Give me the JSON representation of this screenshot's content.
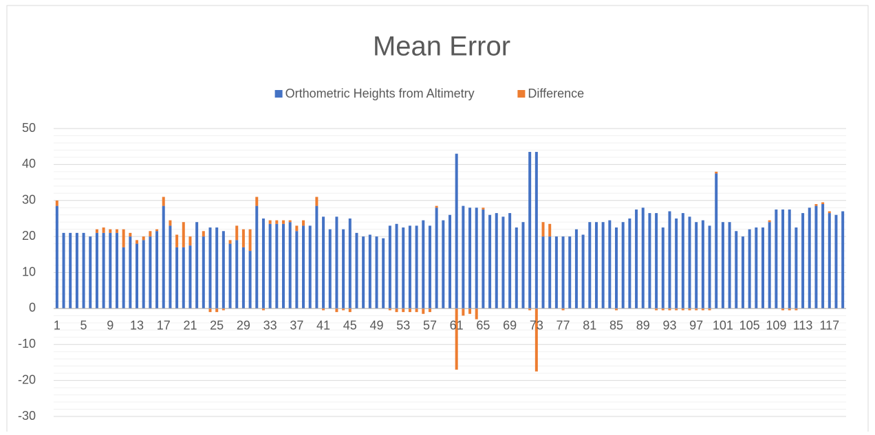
{
  "chart_data": {
    "type": "stacked_bar",
    "title": "Mean Error",
    "categories": [
      "1",
      null,
      null,
      null,
      "5",
      null,
      null,
      null,
      "9",
      null,
      null,
      null,
      "13",
      null,
      null,
      null,
      "17",
      null,
      null,
      null,
      "21",
      null,
      null,
      null,
      "25",
      null,
      null,
      null,
      "29",
      null,
      null,
      null,
      "33",
      null,
      null,
      null,
      "37",
      null,
      null,
      null,
      "41",
      null,
      null,
      null,
      "45",
      null,
      null,
      null,
      "49",
      null,
      null,
      null,
      "53",
      null,
      null,
      null,
      "57",
      null,
      null,
      null,
      "61",
      null,
      null,
      null,
      "65",
      null,
      null,
      null,
      "69",
      null,
      null,
      null,
      "73",
      null,
      null,
      null,
      "77",
      null,
      null,
      null,
      "81",
      null,
      null,
      null,
      "85",
      null,
      null,
      null,
      "89",
      null,
      null,
      null,
      "93",
      null,
      null,
      null,
      "97",
      null,
      null,
      null,
      "101",
      null,
      null,
      null,
      "105",
      null,
      null,
      null,
      "109",
      null,
      null,
      null,
      "113",
      null,
      null,
      null,
      "117",
      null,
      null
    ],
    "series": [
      {
        "name": "Orthometric Heights from Altimetry",
        "color": "#4472c4",
        "values": [
          28.5,
          21,
          21,
          21,
          21,
          20,
          21,
          21,
          21,
          21,
          17,
          20,
          18,
          19,
          20,
          21.5,
          28.5,
          23,
          17,
          17,
          17.5,
          24,
          20,
          22.5,
          22.5,
          21.5,
          18,
          19,
          17,
          16,
          28.5,
          25,
          23.5,
          23.5,
          23.5,
          24,
          21.5,
          23,
          23,
          28.5,
          25.5,
          22,
          25.5,
          22,
          25,
          21,
          20,
          20.5,
          20,
          19.5,
          23,
          23.5,
          22.5,
          23,
          23,
          24.5,
          23,
          28,
          24.5,
          26,
          43,
          28.5,
          28,
          28,
          27.5,
          26,
          26.5,
          25.5,
          26.5,
          22.5,
          24,
          43.5,
          43.5,
          20,
          20,
          20,
          20,
          20,
          22,
          20.5,
          24,
          24,
          24,
          24.5,
          22.5,
          24,
          25,
          27.5,
          28,
          26.5,
          26.5,
          22.5,
          27,
          25,
          26.5,
          25.5,
          24,
          24.5,
          23,
          37.5,
          24,
          24,
          21.5,
          20,
          22,
          22.5,
          22.5,
          24,
          27.5,
          27.5,
          27.5,
          22.5,
          26.5,
          28,
          28.5,
          29,
          26.5,
          26,
          27
        ]
      },
      {
        "name": "Difference",
        "color": "#ed7d31",
        "values": [
          1.5,
          0,
          0,
          0,
          0,
          0,
          1,
          1.5,
          1,
          1,
          5,
          1,
          1,
          1,
          1.5,
          0.5,
          2.5,
          1.5,
          3.5,
          7,
          2.5,
          0,
          1.5,
          -1,
          -1,
          -0.5,
          1,
          4,
          5,
          6,
          2.5,
          -0.5,
          1,
          1,
          1,
          0.5,
          1.5,
          1.5,
          0,
          2.5,
          -0.5,
          0,
          -1,
          -0.5,
          -1,
          0,
          0,
          0,
          0,
          0,
          -0.5,
          -1,
          -1,
          -1,
          -1,
          -1.5,
          -1,
          0.5,
          0,
          0,
          -17,
          -2,
          -1.5,
          -3,
          0.5,
          0,
          0,
          0,
          0,
          0,
          0,
          -0.5,
          -17.5,
          4,
          3.5,
          0,
          -0.5,
          0,
          0,
          0,
          0,
          0,
          0,
          0,
          -0.5,
          0,
          0,
          0,
          0,
          0,
          -0.5,
          -0.5,
          -0.5,
          -0.5,
          -0.5,
          -0.5,
          -0.5,
          -0.5,
          -0.5,
          0.5,
          0,
          0,
          0,
          0,
          0,
          0,
          0,
          0.5,
          0,
          -0.5,
          -0.5,
          -0.5,
          0,
          0,
          0.5,
          0.5,
          0.5,
          0,
          0
        ]
      }
    ],
    "ylim": [
      -30,
      50
    ],
    "yticks": [
      -30,
      -20,
      -10,
      0,
      10,
      20,
      30,
      40,
      50
    ],
    "grid": true,
    "legend": "top"
  }
}
